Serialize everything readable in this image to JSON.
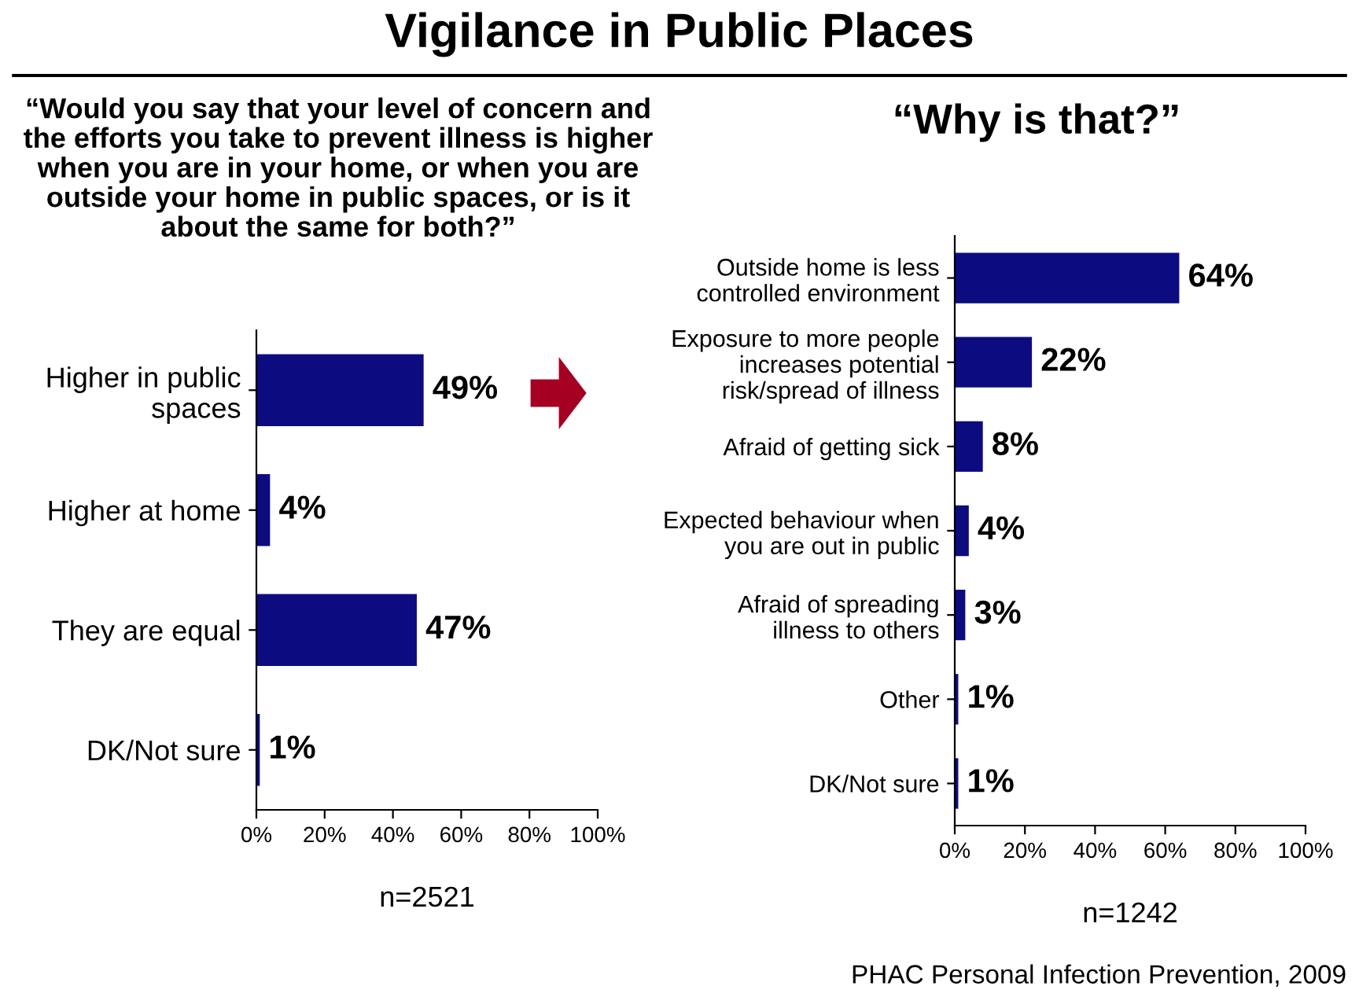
{
  "chart_data": [
    {
      "type": "bar",
      "orientation": "horizontal",
      "title": "Vigilance in Public Places",
      "subtitle": "“Would you say that your level of concern and\nthe efforts you take to prevent illness is higher\nwhen you are in your home, or when you are\noutside your home in public spaces, or is it\nabout the same for both?”",
      "xlabel": "n=2521",
      "categories": [
        "Higher in public\nspaces",
        "Higher at home",
        "They are equal",
        "DK/Not sure"
      ],
      "values": [
        49,
        4,
        47,
        1
      ],
      "value_labels": [
        "49%",
        "4%",
        "47%",
        "1%"
      ],
      "color": "#0c0c80",
      "xlim": [
        0,
        100
      ],
      "xticks": [
        {
          "value": 0,
          "label": "0%"
        },
        {
          "value": 20,
          "label": "20%"
        },
        {
          "value": 40,
          "label": "40%"
        },
        {
          "value": 60,
          "label": "60%"
        },
        {
          "value": 80,
          "label": "80%"
        },
        {
          "value": 100,
          "label": "100%"
        }
      ],
      "grid": false,
      "legend": false
    },
    {
      "type": "bar",
      "orientation": "horizontal",
      "title": "“Why is that?”",
      "xlabel": "n=1242",
      "categories": [
        "Outside home is less\ncontrolled environment",
        "Exposure to more people\nincreases potential\nrisk/spread of illness",
        "Afraid of getting sick",
        "Expected behaviour when\nyou are out in public",
        "Afraid of spreading\nillness to others",
        "Other",
        "DK/Not sure"
      ],
      "values": [
        64,
        22,
        8,
        4,
        3,
        1,
        1
      ],
      "value_labels": [
        "64%",
        "22%",
        "8%",
        "4%",
        "3%",
        "1%",
        "1%"
      ],
      "color": "#0c0c80",
      "xlim": [
        0,
        100
      ],
      "xticks": [
        {
          "value": 0,
          "label": "0%"
        },
        {
          "value": 20,
          "label": "20%"
        },
        {
          "value": 40,
          "label": "40%"
        },
        {
          "value": 60,
          "label": "60%"
        },
        {
          "value": 80,
          "label": "80%"
        },
        {
          "value": 100,
          "label": "100%"
        }
      ],
      "grid": false,
      "legend": false,
      "annotations": [
        "PHAC Personal Infection Prevention, 2009"
      ]
    }
  ]
}
